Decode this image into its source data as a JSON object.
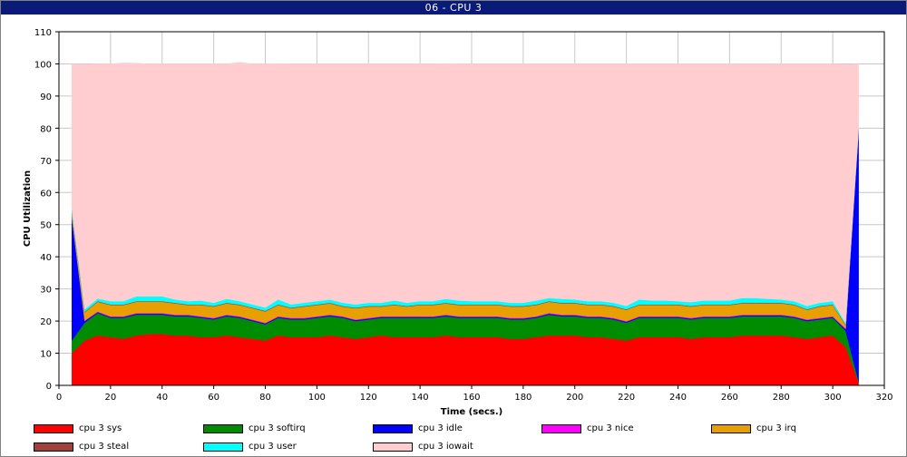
{
  "window": {
    "title": "06 - CPU 3"
  },
  "chart_data": {
    "type": "area",
    "stacked": true,
    "title": "06 - CPU 3",
    "xlabel": "Time (secs.)",
    "ylabel": "CPU Utilization",
    "xlim": [
      0,
      320
    ],
    "ylim": [
      0,
      110
    ],
    "xticks": [
      0,
      20,
      40,
      60,
      80,
      100,
      120,
      140,
      160,
      180,
      200,
      220,
      240,
      260,
      280,
      300,
      320
    ],
    "yticks": [
      0,
      10,
      20,
      30,
      40,
      50,
      60,
      70,
      80,
      90,
      100,
      110
    ],
    "grid": true,
    "legend_position": "bottom",
    "x": [
      5,
      10,
      15,
      20,
      25,
      30,
      35,
      40,
      45,
      50,
      55,
      60,
      65,
      70,
      75,
      80,
      85,
      90,
      95,
      100,
      105,
      110,
      115,
      120,
      125,
      130,
      135,
      140,
      145,
      150,
      155,
      160,
      165,
      170,
      175,
      180,
      185,
      190,
      195,
      200,
      205,
      210,
      215,
      220,
      225,
      230,
      235,
      240,
      245,
      250,
      255,
      260,
      265,
      270,
      275,
      280,
      285,
      290,
      295,
      300,
      305,
      310
    ],
    "series": [
      {
        "name": "cpu 3 sys",
        "color": "#ff0000",
        "values": [
          10,
          14,
          15.5,
          15,
          14.5,
          15.5,
          16,
          16,
          15.5,
          15.5,
          15,
          15,
          15.5,
          15,
          14.5,
          14,
          15.5,
          15,
          15,
          15,
          15.5,
          15,
          14.5,
          15,
          15.5,
          15,
          15,
          15,
          15,
          15.5,
          15,
          15,
          15,
          15,
          14.5,
          14.5,
          15,
          15.5,
          15.5,
          15.5,
          15,
          15,
          14.5,
          14,
          15,
          15,
          15,
          15,
          14.5,
          15,
          15,
          15,
          15.5,
          15.5,
          15.5,
          15.5,
          15,
          14.5,
          15,
          15.5,
          12,
          1
        ]
      },
      {
        "name": "cpu 3 softirq",
        "color": "#008c00",
        "values": [
          4,
          5.5,
          7,
          6,
          6.5,
          6.5,
          6,
          6,
          6,
          6,
          6,
          5.5,
          6,
          6,
          5.5,
          5,
          5.5,
          5.5,
          5.5,
          6,
          6,
          6,
          5.5,
          5.5,
          5.5,
          6,
          6,
          6,
          6,
          6,
          6,
          6,
          6,
          6,
          6,
          6,
          6,
          6.5,
          6,
          6,
          6,
          6,
          6,
          5.5,
          6,
          6,
          6,
          6,
          6,
          6,
          6,
          6,
          6,
          6,
          6,
          6,
          6,
          5.5,
          5.5,
          5.5,
          5,
          0.3
        ]
      },
      {
        "name": "cpu 3 idle",
        "color": "#0000ff",
        "values": [
          38.5,
          0.5,
          0.3,
          0.3,
          0.3,
          0.3,
          0.3,
          0.3,
          0.3,
          0.3,
          0.3,
          0.3,
          0.3,
          0.3,
          0.3,
          0.3,
          0.3,
          0.3,
          0.3,
          0.3,
          0.3,
          0.3,
          0.3,
          0.3,
          0.3,
          0.3,
          0.3,
          0.3,
          0.3,
          0.3,
          0.3,
          0.3,
          0.3,
          0.3,
          0.3,
          0.3,
          0.3,
          0.3,
          0.3,
          0.3,
          0.3,
          0.3,
          0.3,
          0.3,
          0.3,
          0.3,
          0.3,
          0.3,
          0.3,
          0.3,
          0.3,
          0.3,
          0.3,
          0.3,
          0.3,
          0.3,
          0.3,
          0.3,
          0.3,
          0.3,
          0.5,
          78
        ]
      },
      {
        "name": "cpu 3 nice",
        "color": "#ff00ff",
        "values": [
          0,
          0.2,
          0.2,
          0.2,
          0.2,
          0.2,
          0.2,
          0.2,
          0.2,
          0.2,
          0.2,
          0.2,
          0.2,
          0.2,
          0.2,
          0.2,
          0.2,
          0.2,
          0.2,
          0.2,
          0.2,
          0.2,
          0.2,
          0.2,
          0.2,
          0.2,
          0.2,
          0.2,
          0.2,
          0.2,
          0.2,
          0.2,
          0.2,
          0.2,
          0.2,
          0.2,
          0.2,
          0.2,
          0.2,
          0.2,
          0.2,
          0.2,
          0.2,
          0.2,
          0.2,
          0.2,
          0.2,
          0.2,
          0.2,
          0.2,
          0.2,
          0.2,
          0.2,
          0.2,
          0.2,
          0.2,
          0.2,
          0.2,
          0.2,
          0.2,
          0.2,
          0
        ]
      },
      {
        "name": "cpu 3 irq",
        "color": "#e8a000",
        "values": [
          1.5,
          2.5,
          3,
          3.5,
          3.5,
          3.5,
          3.5,
          3.5,
          3.5,
          3,
          3.5,
          3.5,
          3.5,
          3.5,
          3.5,
          3.5,
          3.5,
          3,
          3.5,
          3.5,
          3.5,
          3,
          3.5,
          3.5,
          3,
          3.5,
          3,
          3.5,
          3.5,
          3.5,
          3.5,
          3.5,
          3.5,
          3.5,
          3.5,
          3.5,
          3.5,
          3.5,
          3.5,
          3.5,
          3.5,
          3.5,
          3.5,
          3.5,
          3.5,
          3.5,
          3.5,
          3.5,
          3.5,
          3.5,
          3.5,
          3.5,
          3.5,
          3.5,
          3.5,
          3.5,
          3.5,
          3,
          3.5,
          3.5,
          1,
          0.2
        ]
      },
      {
        "name": "cpu 3 steal",
        "color": "#a0413c",
        "values": [
          0,
          0.2,
          0.2,
          0.2,
          0.2,
          0.2,
          0.2,
          0.2,
          0.2,
          0.2,
          0.2,
          0.2,
          0.2,
          0.2,
          0.2,
          0.2,
          0.2,
          0.2,
          0.2,
          0.2,
          0.2,
          0.2,
          0.2,
          0.2,
          0.2,
          0.2,
          0.2,
          0.2,
          0.2,
          0.2,
          0.2,
          0.2,
          0.2,
          0.2,
          0.2,
          0.2,
          0.2,
          0.2,
          0.2,
          0.2,
          0.2,
          0.2,
          0.2,
          0.2,
          0.2,
          0.2,
          0.2,
          0.2,
          0.2,
          0.2,
          0.2,
          0.2,
          0.2,
          0.2,
          0.2,
          0.2,
          0.2,
          0.2,
          0.2,
          0.2,
          0.2,
          0
        ]
      },
      {
        "name": "cpu 3 user",
        "color": "#00ffff",
        "values": [
          1,
          0.8,
          0.8,
          1,
          1,
          1.5,
          1.5,
          1.5,
          1,
          1,
          1.2,
          1,
          1.2,
          1,
          1,
          1,
          1.5,
          1,
          1,
          1,
          1,
          1,
          1,
          1,
          1,
          1.2,
          1,
          1,
          1,
          1.2,
          1.2,
          1,
          1,
          1,
          1,
          1,
          1.2,
          1,
          1.2,
          1,
          1,
          1,
          1,
          1,
          1.5,
          1.2,
          1.2,
          1,
          1.2,
          1.2,
          1.2,
          1.2,
          1.5,
          1.5,
          1.2,
          1,
          1,
          1,
          1,
          1,
          0.5,
          0.5
        ]
      },
      {
        "name": "cpu 3 iowait",
        "color": "#ffccd0",
        "values": [
          45,
          76.1,
          73,
          73.8,
          74.1,
          72.5,
          72.3,
          72.3,
          73.3,
          73.8,
          73.6,
          74.3,
          73.1,
          74.3,
          74.8,
          75.8,
          73.4,
          74.8,
          74.3,
          73.8,
          73.3,
          74.3,
          74.8,
          74.3,
          74.3,
          73.6,
          74.3,
          73.8,
          73.8,
          73.2,
          73.6,
          73.8,
          73.8,
          73.8,
          74.3,
          74.3,
          73.6,
          72.8,
          73.1,
          73.3,
          73.8,
          73.8,
          74.3,
          75.3,
          73.3,
          73.6,
          73.6,
          73.8,
          74.1,
          73.6,
          73.6,
          73.6,
          72.8,
          72.8,
          73.1,
          73.3,
          73.8,
          75.3,
          74.3,
          73.8,
          80.4,
          20
        ]
      }
    ]
  }
}
